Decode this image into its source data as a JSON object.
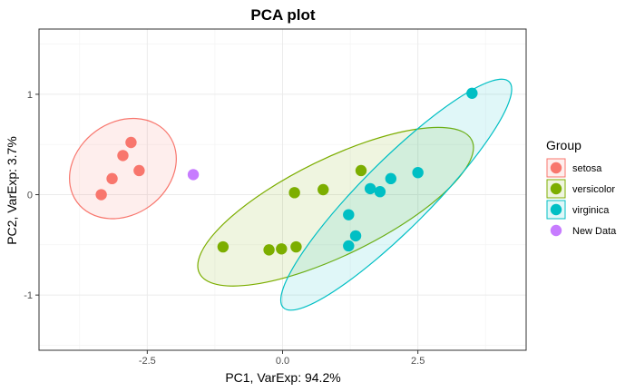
{
  "chart_data": {
    "type": "scatter",
    "title": "PCA plot",
    "xlabel": "PC1, VarExp: 94.2%",
    "ylabel": "PC2, VarExp: 3.7%",
    "xlim": [
      -4.5,
      4.5
    ],
    "ylim": [
      -1.55,
      1.65
    ],
    "x_ticks": [
      -2.5,
      0.0,
      2.5
    ],
    "x_tick_labels": [
      "-2.5",
      "0.0",
      "2.5"
    ],
    "y_ticks": [
      -1,
      0,
      1
    ],
    "y_tick_labels": [
      "-1",
      "0",
      "1"
    ],
    "grid": true,
    "legend": {
      "title": "Group",
      "position": "right",
      "entries": [
        {
          "label": "setosa",
          "color": "#F8766D"
        },
        {
          "label": "versicolor",
          "color": "#7CAE00"
        },
        {
          "label": "virginica",
          "color": "#00BFC4"
        },
        {
          "label": "New Data",
          "color": "#C77CFF"
        }
      ]
    },
    "series": [
      {
        "name": "setosa",
        "color": "#F8766D",
        "points": [
          {
            "x": -2.8,
            "y": 0.52
          },
          {
            "x": -2.95,
            "y": 0.39
          },
          {
            "x": -3.15,
            "y": 0.16
          },
          {
            "x": -2.65,
            "y": 0.24
          },
          {
            "x": -3.35,
            "y": 0.0
          }
        ],
        "ellipse": {
          "cx": -2.95,
          "cy": 0.26,
          "rx": 1.05,
          "ry": 0.46,
          "angle_deg": 36
        }
      },
      {
        "name": "versicolor",
        "color": "#7CAE00",
        "points": [
          {
            "x": -1.1,
            "y": -0.52
          },
          {
            "x": -0.25,
            "y": -0.55
          },
          {
            "x": -0.02,
            "y": -0.54
          },
          {
            "x": 0.25,
            "y": -0.52
          },
          {
            "x": 0.22,
            "y": 0.02
          },
          {
            "x": 0.75,
            "y": 0.05
          },
          {
            "x": 1.45,
            "y": 0.24
          }
        ],
        "ellipse": {
          "cx": 0.98,
          "cy": -0.12,
          "rx": 2.8,
          "ry": 0.48,
          "angle_deg": 26
        }
      },
      {
        "name": "virginica",
        "color": "#00BFC4",
        "points": [
          {
            "x": 3.5,
            "y": 1.01
          },
          {
            "x": 2.5,
            "y": 0.22
          },
          {
            "x": 2.0,
            "y": 0.16
          },
          {
            "x": 1.62,
            "y": 0.06
          },
          {
            "x": 1.8,
            "y": 0.03
          },
          {
            "x": 1.22,
            "y": -0.2
          },
          {
            "x": 1.35,
            "y": -0.41
          },
          {
            "x": 1.22,
            "y": -0.51
          }
        ],
        "ellipse": {
          "cx": 2.1,
          "cy": 0.0,
          "rx": 2.95,
          "ry": 0.34,
          "angle_deg": 45
        }
      },
      {
        "name": "New Data",
        "color": "#C77CFF",
        "points": [
          {
            "x": -1.65,
            "y": 0.2
          }
        ]
      }
    ]
  }
}
